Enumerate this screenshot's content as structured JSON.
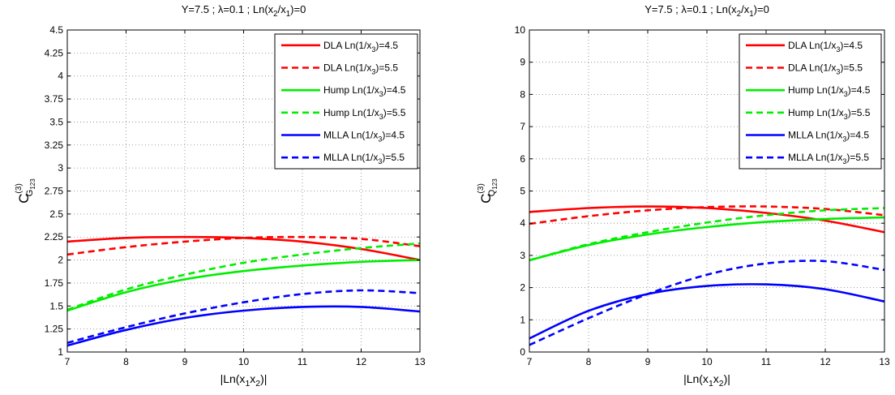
{
  "colors": {
    "red": "#ff0000",
    "green": "#00ee00",
    "blue": "#0000ff",
    "grid": "#808080"
  },
  "chart_data": [
    {
      "type": "line",
      "title_parts": [
        "Y=7.5 ; ",
        "λ",
        "=0.1 ; Ln(x",
        "2",
        "/x",
        "1",
        ")=0"
      ],
      "xlabel_parts": [
        "|Ln(x",
        "1",
        "x",
        "2",
        ")|"
      ],
      "ylabel_parts": [
        "C",
        "(3)",
        "G",
        "123"
      ],
      "xlim": [
        7,
        13
      ],
      "ylim": [
        1,
        4.5
      ],
      "xticks": [
        7,
        8,
        9,
        10,
        11,
        12,
        13
      ],
      "yticks": [
        1,
        1.25,
        1.5,
        1.75,
        2,
        2.25,
        2.5,
        2.75,
        3,
        3.25,
        3.5,
        3.75,
        4,
        4.25,
        4.5
      ],
      "grid": true,
      "legend_position": "top-right",
      "x": [
        7,
        8,
        9,
        10,
        11,
        12,
        13
      ],
      "series": [
        {
          "name_parts": [
            "DLA Ln(1/x",
            "3",
            ")=4.5"
          ],
          "color": "red",
          "dash": "solid",
          "values": [
            2.2,
            2.24,
            2.25,
            2.24,
            2.2,
            2.12,
            2.0
          ]
        },
        {
          "name_parts": [
            "DLA Ln(1/x",
            "3",
            ")=5.5"
          ],
          "color": "red",
          "dash": "dashed",
          "values": [
            2.06,
            2.14,
            2.2,
            2.24,
            2.25,
            2.23,
            2.15
          ]
        },
        {
          "name_parts": [
            "Hump Ln(1/x",
            "3",
            ")=4.5"
          ],
          "color": "green",
          "dash": "solid",
          "values": [
            1.45,
            1.65,
            1.79,
            1.88,
            1.94,
            1.98,
            2.0
          ]
        },
        {
          "name_parts": [
            "Hump Ln(1/x",
            "3",
            ")=5.5"
          ],
          "color": "green",
          "dash": "dashed",
          "values": [
            1.46,
            1.68,
            1.84,
            1.97,
            2.06,
            2.13,
            2.18
          ]
        },
        {
          "name_parts": [
            "MLLA Ln(1/x",
            "3",
            ")=4.5"
          ],
          "color": "blue",
          "dash": "solid",
          "values": [
            1.07,
            1.24,
            1.37,
            1.45,
            1.49,
            1.49,
            1.44
          ]
        },
        {
          "name_parts": [
            "MLLA Ln(1/x",
            "3",
            ")=5.5"
          ],
          "color": "blue",
          "dash": "dashed",
          "values": [
            1.1,
            1.27,
            1.42,
            1.54,
            1.63,
            1.67,
            1.64
          ]
        }
      ]
    },
    {
      "type": "line",
      "title_parts": [
        "Y=7.5 ; ",
        "λ",
        "=0.1 ; Ln(x",
        "2",
        "/x",
        "1",
        ")=0"
      ],
      "xlabel_parts": [
        "|Ln(x",
        "1",
        "x",
        "2",
        ")|"
      ],
      "ylabel_parts": [
        "C",
        "(3)",
        "Q",
        "123"
      ],
      "xlim": [
        7,
        13
      ],
      "ylim": [
        0,
        10
      ],
      "xticks": [
        7,
        8,
        9,
        10,
        11,
        12,
        13
      ],
      "yticks": [
        0,
        1,
        2,
        3,
        4,
        5,
        6,
        7,
        8,
        9,
        10
      ],
      "grid": true,
      "legend_position": "top-right",
      "x": [
        7,
        8,
        9,
        10,
        11,
        12,
        13
      ],
      "series": [
        {
          "name_parts": [
            "DLA Ln(1/x",
            "3",
            ")=4.5"
          ],
          "color": "red",
          "dash": "solid",
          "values": [
            4.35,
            4.47,
            4.52,
            4.47,
            4.32,
            4.08,
            3.72
          ]
        },
        {
          "name_parts": [
            "DLA Ln(1/x",
            "3",
            ")=5.5"
          ],
          "color": "red",
          "dash": "dashed",
          "values": [
            3.98,
            4.22,
            4.4,
            4.5,
            4.52,
            4.44,
            4.25
          ]
        },
        {
          "name_parts": [
            "Hump Ln(1/x",
            "3",
            ")=4.5"
          ],
          "color": "green",
          "dash": "solid",
          "values": [
            2.85,
            3.32,
            3.65,
            3.88,
            4.04,
            4.13,
            4.18
          ]
        },
        {
          "name_parts": [
            "Hump Ln(1/x",
            "3",
            ")=5.5"
          ],
          "color": "green",
          "dash": "dashed",
          "values": [
            2.85,
            3.35,
            3.72,
            4.02,
            4.25,
            4.4,
            4.47
          ]
        },
        {
          "name_parts": [
            "MLLA Ln(1/x",
            "3",
            ")=4.5"
          ],
          "color": "blue",
          "dash": "solid",
          "values": [
            0.42,
            1.28,
            1.8,
            2.05,
            2.1,
            1.95,
            1.57
          ]
        },
        {
          "name_parts": [
            "MLLA Ln(1/x",
            "3",
            ")=5.5"
          ],
          "color": "blue",
          "dash": "dashed",
          "values": [
            0.22,
            1.05,
            1.8,
            2.4,
            2.75,
            2.82,
            2.55
          ]
        }
      ]
    }
  ]
}
